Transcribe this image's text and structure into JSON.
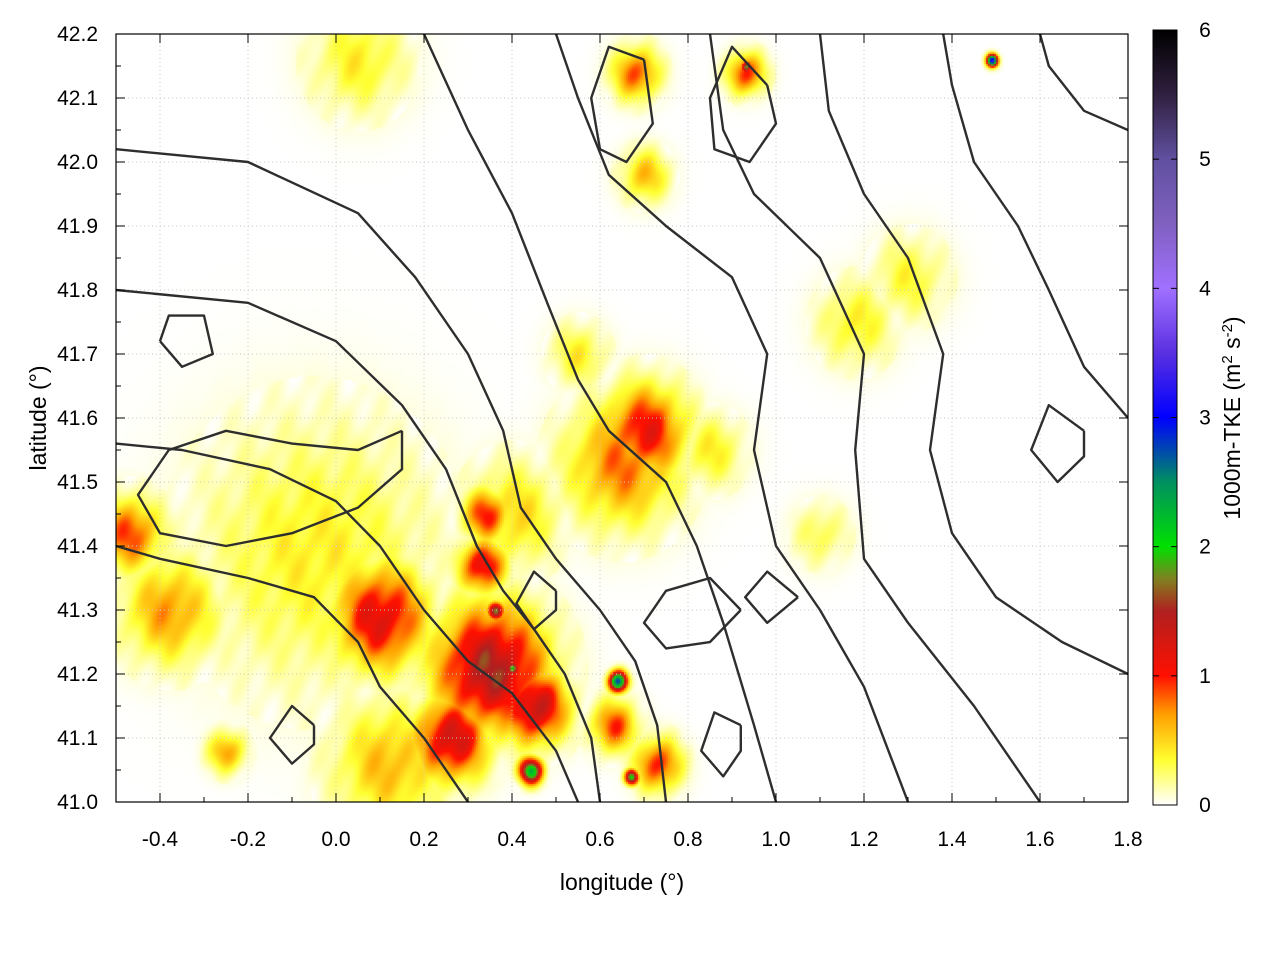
{
  "chart_data": {
    "type": "heatmap",
    "xlabel": "longitude (°)",
    "ylabel": "latitude (°)",
    "xlim": [
      -0.5,
      1.8
    ],
    "ylim": [
      41.0,
      42.2
    ],
    "xticks": [
      -0.4,
      -0.2,
      0.0,
      0.2,
      0.4,
      0.6,
      0.8,
      1.0,
      1.2,
      1.4,
      1.6,
      1.8
    ],
    "xtick_labels": [
      "-0.4",
      "-0.2",
      "0.0",
      "0.2",
      "0.4",
      "0.6",
      "0.8",
      "1.0",
      "1.2",
      "1.4",
      "1.6",
      "1.8"
    ],
    "yticks": [
      41.0,
      41.1,
      41.2,
      41.3,
      41.4,
      41.5,
      41.6,
      41.7,
      41.8,
      41.9,
      42.0,
      42.1,
      42.2
    ],
    "ytick_labels": [
      "41.0",
      "41.1",
      "41.2",
      "41.3",
      "41.4",
      "41.5",
      "41.6",
      "41.7",
      "41.8",
      "41.9",
      "42.0",
      "42.1",
      "42.2"
    ],
    "grid": true,
    "colorbar": {
      "label_main": "1000m-TKE (m",
      "sup1": "2",
      "label_mid": " s",
      "sup2": "-2",
      "label_end": ")",
      "range": [
        0,
        6
      ],
      "ticks": [
        0,
        1,
        2,
        3,
        4,
        5,
        6
      ],
      "tick_labels": [
        "0",
        "1",
        "2",
        "3",
        "4",
        "5",
        "6"
      ],
      "colors": [
        {
          "v": 0.0,
          "c": "#ffffff"
        },
        {
          "v": 0.35,
          "c": "#ffff30"
        },
        {
          "v": 0.7,
          "c": "#ffa000"
        },
        {
          "v": 1.0,
          "c": "#ff1000"
        },
        {
          "v": 1.5,
          "c": "#b02020"
        },
        {
          "v": 1.75,
          "c": "#808020"
        },
        {
          "v": 2.0,
          "c": "#00e000"
        },
        {
          "v": 2.5,
          "c": "#009060"
        },
        {
          "v": 3.0,
          "c": "#0000ff"
        },
        {
          "v": 3.5,
          "c": "#5a30e0"
        },
        {
          "v": 4.0,
          "c": "#a070ff"
        },
        {
          "v": 4.5,
          "c": "#8060c0"
        },
        {
          "v": 5.0,
          "c": "#6050a0"
        },
        {
          "v": 5.5,
          "c": "#302040"
        },
        {
          "v": 6.0,
          "c": "#000000"
        }
      ]
    },
    "hotspots": [
      {
        "lon": 0.35,
        "lat": 41.21,
        "value": 1.5,
        "r": 0.12
      },
      {
        "lon": 0.45,
        "lat": 41.15,
        "value": 1.4,
        "r": 0.07
      },
      {
        "lon": 0.1,
        "lat": 41.29,
        "value": 1.2,
        "r": 0.1
      },
      {
        "lon": 0.26,
        "lat": 41.1,
        "value": 1.3,
        "r": 0.08
      },
      {
        "lon": 0.7,
        "lat": 41.58,
        "value": 1.1,
        "r": 0.09
      },
      {
        "lon": 0.65,
        "lat": 41.53,
        "value": 0.8,
        "r": 0.12
      },
      {
        "lon": 0.34,
        "lat": 41.45,
        "value": 1.0,
        "r": 0.05
      },
      {
        "lon": 0.33,
        "lat": 41.37,
        "value": 1.2,
        "r": 0.05
      },
      {
        "lon": -0.47,
        "lat": 41.42,
        "value": 0.9,
        "r": 0.07
      },
      {
        "lon": -0.38,
        "lat": 41.3,
        "value": 0.7,
        "r": 0.1
      },
      {
        "lon": -0.05,
        "lat": 41.39,
        "value": 0.4,
        "r": 0.25
      },
      {
        "lon": 0.12,
        "lat": 41.06,
        "value": 0.6,
        "r": 0.12
      },
      {
        "lon": 0.73,
        "lat": 41.06,
        "value": 1.0,
        "r": 0.05
      },
      {
        "lon": 0.63,
        "lat": 41.12,
        "value": 0.9,
        "r": 0.05
      },
      {
        "lon": 0.93,
        "lat": 42.14,
        "value": 1.0,
        "r": 0.04
      },
      {
        "lon": 0.68,
        "lat": 42.14,
        "value": 0.9,
        "r": 0.05
      },
      {
        "lon": 0.7,
        "lat": 41.98,
        "value": 0.6,
        "r": 0.05
      },
      {
        "lon": 0.05,
        "lat": 42.16,
        "value": 0.4,
        "r": 0.1
      },
      {
        "lon": 1.18,
        "lat": 41.75,
        "value": 0.4,
        "r": 0.08
      },
      {
        "lon": 1.3,
        "lat": 41.82,
        "value": 0.35,
        "r": 0.08
      },
      {
        "lon": 1.1,
        "lat": 41.42,
        "value": 0.3,
        "r": 0.06
      },
      {
        "lon": 0.55,
        "lat": 41.7,
        "value": 0.4,
        "r": 0.06
      },
      {
        "lon": -0.25,
        "lat": 41.08,
        "value": 0.7,
        "r": 0.04
      },
      {
        "lon": 0.4,
        "lat": 41.45,
        "value": 0.5,
        "r": 0.1
      },
      {
        "lon": 0.85,
        "lat": 41.55,
        "value": 0.4,
        "r": 0.07
      }
    ],
    "peaks": [
      {
        "lon": 0.44,
        "lat": 41.05,
        "value": 2.2,
        "r": 0.025
      },
      {
        "lon": 0.64,
        "lat": 41.19,
        "value": 2.8,
        "r": 0.02
      },
      {
        "lon": 0.36,
        "lat": 41.3,
        "value": 2.0,
        "r": 0.018
      },
      {
        "lon": 0.4,
        "lat": 41.21,
        "value": 2.1,
        "r": 0.015
      },
      {
        "lon": 0.67,
        "lat": 41.04,
        "value": 2.0,
        "r": 0.015
      },
      {
        "lon": 1.49,
        "lat": 42.16,
        "value": 3.5,
        "r": 0.012
      },
      {
        "lon": 0.93,
        "lat": 42.15,
        "value": 1.9,
        "r": 0.012
      }
    ],
    "contours": [
      [
        [
          0.3,
          41.0
        ],
        [
          0.25,
          41.05
        ],
        [
          0.2,
          41.1
        ],
        [
          0.1,
          41.18
        ],
        [
          0.05,
          41.25
        ],
        [
          -0.05,
          41.32
        ],
        [
          -0.2,
          41.35
        ],
        [
          -0.4,
          41.38
        ],
        [
          -0.5,
          41.4
        ]
      ],
      [
        [
          0.55,
          41.0
        ],
        [
          0.5,
          41.08
        ],
        [
          0.4,
          41.17
        ],
        [
          0.3,
          41.22
        ],
        [
          0.2,
          41.3
        ],
        [
          0.1,
          41.4
        ],
        [
          0.0,
          41.47
        ],
        [
          -0.15,
          41.52
        ],
        [
          -0.35,
          41.55
        ],
        [
          -0.5,
          41.56
        ]
      ],
      [
        [
          0.6,
          41.0
        ],
        [
          0.58,
          41.1
        ],
        [
          0.52,
          41.2
        ],
        [
          0.45,
          41.27
        ],
        [
          0.38,
          41.33
        ],
        [
          0.32,
          41.4
        ],
        [
          0.25,
          41.52
        ],
        [
          0.15,
          41.62
        ],
        [
          0.0,
          41.72
        ],
        [
          -0.2,
          41.78
        ],
        [
          -0.5,
          41.8
        ]
      ],
      [
        [
          0.75,
          41.0
        ],
        [
          0.73,
          41.12
        ],
        [
          0.68,
          41.22
        ],
        [
          0.6,
          41.3
        ],
        [
          0.5,
          41.38
        ],
        [
          0.42,
          41.46
        ],
        [
          0.38,
          41.58
        ],
        [
          0.3,
          41.7
        ],
        [
          0.18,
          41.82
        ],
        [
          0.05,
          41.92
        ],
        [
          -0.2,
          42.0
        ],
        [
          -0.5,
          42.02
        ]
      ],
      [
        [
          1.0,
          41.0
        ],
        [
          0.95,
          41.12
        ],
        [
          0.88,
          41.28
        ],
        [
          0.82,
          41.4
        ],
        [
          0.75,
          41.5
        ],
        [
          0.62,
          41.58
        ],
        [
          0.55,
          41.66
        ],
        [
          0.48,
          41.78
        ],
        [
          0.4,
          41.92
        ],
        [
          0.3,
          42.05
        ],
        [
          0.2,
          42.2
        ]
      ],
      [
        [
          1.3,
          41.0
        ],
        [
          1.2,
          41.18
        ],
        [
          1.1,
          41.3
        ],
        [
          1.0,
          41.4
        ],
        [
          0.95,
          41.55
        ],
        [
          0.98,
          41.7
        ],
        [
          0.9,
          41.82
        ],
        [
          0.75,
          41.9
        ],
        [
          0.62,
          41.98
        ],
        [
          0.55,
          42.1
        ],
        [
          0.5,
          42.2
        ]
      ],
      [
        [
          1.6,
          41.0
        ],
        [
          1.45,
          41.15
        ],
        [
          1.3,
          41.28
        ],
        [
          1.2,
          41.38
        ],
        [
          1.18,
          41.55
        ],
        [
          1.2,
          41.7
        ],
        [
          1.1,
          41.85
        ],
        [
          0.95,
          41.95
        ],
        [
          0.88,
          42.05
        ],
        [
          0.85,
          42.2
        ]
      ],
      [
        [
          1.8,
          41.2
        ],
        [
          1.65,
          41.25
        ],
        [
          1.5,
          41.32
        ],
        [
          1.4,
          41.42
        ],
        [
          1.35,
          41.55
        ],
        [
          1.38,
          41.7
        ],
        [
          1.3,
          41.85
        ],
        [
          1.2,
          41.95
        ],
        [
          1.12,
          42.08
        ],
        [
          1.1,
          42.2
        ]
      ],
      [
        [
          1.8,
          41.6
        ],
        [
          1.7,
          41.68
        ],
        [
          1.62,
          41.8
        ],
        [
          1.55,
          41.9
        ],
        [
          1.45,
          42.0
        ],
        [
          1.4,
          42.12
        ],
        [
          1.38,
          42.2
        ]
      ],
      [
        [
          1.8,
          42.05
        ],
        [
          1.7,
          42.08
        ],
        [
          1.62,
          42.15
        ],
        [
          1.6,
          42.2
        ]
      ],
      [
        [
          0.15,
          41.58
        ],
        [
          0.05,
          41.55
        ],
        [
          -0.1,
          41.56
        ],
        [
          -0.25,
          41.58
        ],
        [
          -0.38,
          41.55
        ],
        [
          -0.45,
          41.48
        ],
        [
          -0.4,
          41.42
        ],
        [
          -0.25,
          41.4
        ],
        [
          -0.1,
          41.42
        ],
        [
          0.05,
          41.46
        ],
        [
          0.15,
          41.52
        ],
        [
          0.15,
          41.58
        ]
      ],
      [
        [
          0.92,
          41.3
        ],
        [
          0.85,
          41.35
        ],
        [
          0.75,
          41.33
        ],
        [
          0.7,
          41.28
        ],
        [
          0.75,
          41.24
        ],
        [
          0.85,
          41.25
        ],
        [
          0.92,
          41.3
        ]
      ],
      [
        [
          1.05,
          41.32
        ],
        [
          0.98,
          41.36
        ],
        [
          0.93,
          41.32
        ],
        [
          0.98,
          41.28
        ],
        [
          1.05,
          41.32
        ]
      ],
      [
        [
          0.7,
          42.16
        ],
        [
          0.62,
          42.18
        ],
        [
          0.58,
          42.1
        ],
        [
          0.6,
          42.02
        ],
        [
          0.66,
          42.0
        ],
        [
          0.72,
          42.06
        ],
        [
          0.7,
          42.16
        ]
      ],
      [
        [
          0.98,
          42.12
        ],
        [
          0.9,
          42.18
        ],
        [
          0.85,
          42.1
        ],
        [
          0.86,
          42.02
        ],
        [
          0.94,
          42.0
        ],
        [
          1.0,
          42.06
        ],
        [
          0.98,
          42.12
        ]
      ],
      [
        [
          -0.4,
          41.72
        ],
        [
          -0.35,
          41.68
        ],
        [
          -0.28,
          41.7
        ],
        [
          -0.3,
          41.76
        ],
        [
          -0.38,
          41.76
        ],
        [
          -0.4,
          41.72
        ]
      ],
      [
        [
          1.7,
          41.58
        ],
        [
          1.62,
          41.62
        ],
        [
          1.58,
          41.55
        ],
        [
          1.64,
          41.5
        ],
        [
          1.7,
          41.54
        ],
        [
          1.7,
          41.58
        ]
      ],
      [
        [
          0.5,
          41.33
        ],
        [
          0.45,
          41.36
        ],
        [
          0.41,
          41.31
        ],
        [
          0.45,
          41.27
        ],
        [
          0.5,
          41.3
        ],
        [
          0.5,
          41.33
        ]
      ],
      [
        [
          0.92,
          41.12
        ],
        [
          0.86,
          41.14
        ],
        [
          0.83,
          41.08
        ],
        [
          0.88,
          41.04
        ],
        [
          0.92,
          41.08
        ],
        [
          0.92,
          41.12
        ]
      ],
      [
        [
          -0.05,
          41.12
        ],
        [
          -0.1,
          41.15
        ],
        [
          -0.15,
          41.1
        ],
        [
          -0.1,
          41.06
        ],
        [
          -0.05,
          41.09
        ],
        [
          -0.05,
          41.12
        ]
      ]
    ]
  }
}
